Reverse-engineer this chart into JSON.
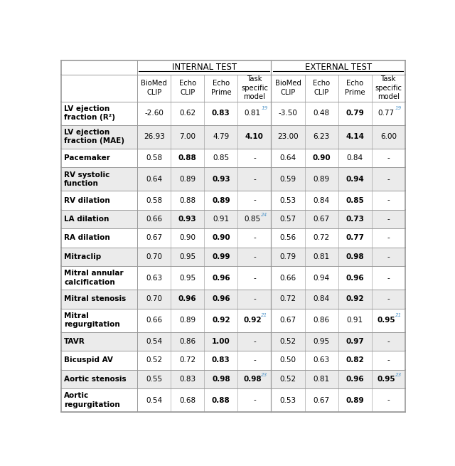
{
  "header1_left": "INTERNAL TEST",
  "header1_right": "EXTERNAL TEST",
  "col_headers": [
    "BioMed\nCLIP",
    "Echo\nCLIP",
    "Echo\nPrime",
    "Task\nspecific\nmodel",
    "BioMed\nCLIP",
    "Echo\nCLIP",
    "Echo\nPrime",
    "Task\nspecific\nmodel"
  ],
  "rows": [
    {
      "label": "LV ejection\nfraction (R²)",
      "values": [
        "-2.60",
        "0.62",
        "0.83",
        "0.81",
        "-3.50",
        "0.48",
        "0.79",
        "0.77"
      ],
      "bold": [
        false,
        false,
        true,
        false,
        false,
        false,
        true,
        false
      ],
      "sup": [
        "",
        "",
        "",
        "19",
        "",
        "",
        "",
        "19"
      ],
      "bg": "#ffffff"
    },
    {
      "label": "LV ejection\nfraction (MAE)",
      "values": [
        "26.93",
        "7.00",
        "4.79",
        "4.10",
        "23.00",
        "6.23",
        "4.14",
        "6.00"
      ],
      "bold": [
        false,
        false,
        false,
        true,
        false,
        false,
        true,
        false
      ],
      "sup": [
        "",
        "",
        "",
        "",
        "",
        "",
        "",
        ""
      ],
      "bg": "#ebebeb"
    },
    {
      "label": "Pacemaker",
      "values": [
        "0.58",
        "0.88",
        "0.85",
        "-",
        "0.64",
        "0.90",
        "0.84",
        "-"
      ],
      "bold": [
        false,
        true,
        false,
        false,
        false,
        true,
        false,
        false
      ],
      "sup": [
        "",
        "",
        "",
        "",
        "",
        "",
        "",
        ""
      ],
      "bg": "#ffffff"
    },
    {
      "label": "RV systolic\nfunction",
      "values": [
        "0.64",
        "0.89",
        "0.93",
        "-",
        "0.59",
        "0.89",
        "0.94",
        "-"
      ],
      "bold": [
        false,
        false,
        true,
        false,
        false,
        false,
        true,
        false
      ],
      "sup": [
        "",
        "",
        "",
        "",
        "",
        "",
        "",
        ""
      ],
      "bg": "#ebebeb"
    },
    {
      "label": "RV dilation",
      "values": [
        "0.58",
        "0.88",
        "0.89",
        "-",
        "0.53",
        "0.84",
        "0.85",
        "-"
      ],
      "bold": [
        false,
        false,
        true,
        false,
        false,
        false,
        true,
        false
      ],
      "sup": [
        "",
        "",
        "",
        "",
        "",
        "",
        "",
        ""
      ],
      "bg": "#ffffff"
    },
    {
      "label": "LA dilation",
      "values": [
        "0.66",
        "0.93",
        "0.91",
        "0.85",
        "0.57",
        "0.67",
        "0.73",
        "-"
      ],
      "bold": [
        false,
        true,
        false,
        false,
        false,
        false,
        true,
        false
      ],
      "sup": [
        "",
        "",
        "",
        "24",
        "",
        "",
        "",
        ""
      ],
      "bg": "#ebebeb"
    },
    {
      "label": "RA dilation",
      "values": [
        "0.67",
        "0.90",
        "0.90",
        "-",
        "0.56",
        "0.72",
        "0.77",
        "-"
      ],
      "bold": [
        false,
        false,
        true,
        false,
        false,
        false,
        true,
        false
      ],
      "sup": [
        "",
        "",
        "",
        "",
        "",
        "",
        "",
        ""
      ],
      "bg": "#ffffff"
    },
    {
      "label": "Mitraclip",
      "values": [
        "0.70",
        "0.95",
        "0.99",
        "-",
        "0.79",
        "0.81",
        "0.98",
        "-"
      ],
      "bold": [
        false,
        false,
        true,
        false,
        false,
        false,
        true,
        false
      ],
      "sup": [
        "",
        "",
        "",
        "",
        "",
        "",
        "",
        ""
      ],
      "bg": "#ebebeb"
    },
    {
      "label": "Mitral annular\ncalcification",
      "values": [
        "0.63",
        "0.95",
        "0.96",
        "-",
        "0.66",
        "0.94",
        "0.96",
        "-"
      ],
      "bold": [
        false,
        false,
        true,
        false,
        false,
        false,
        true,
        false
      ],
      "sup": [
        "",
        "",
        "",
        "",
        "",
        "",
        "",
        ""
      ],
      "bg": "#ffffff"
    },
    {
      "label": "Mitral stenosis",
      "values": [
        "0.70",
        "0.96",
        "0.96",
        "-",
        "0.72",
        "0.84",
        "0.92",
        "-"
      ],
      "bold": [
        false,
        true,
        true,
        false,
        false,
        false,
        true,
        false
      ],
      "sup": [
        "",
        "",
        "",
        "",
        "",
        "",
        "",
        ""
      ],
      "bg": "#ebebeb"
    },
    {
      "label": "Mitral\nregurgitation",
      "values": [
        "0.66",
        "0.89",
        "0.92",
        "0.92",
        "0.67",
        "0.86",
        "0.91",
        "0.95"
      ],
      "bold": [
        false,
        false,
        true,
        true,
        false,
        false,
        false,
        true
      ],
      "sup": [
        "",
        "",
        "",
        "21",
        "",
        "",
        "",
        "21"
      ],
      "bg": "#ffffff"
    },
    {
      "label": "TAVR",
      "values": [
        "0.54",
        "0.86",
        "1.00",
        "-",
        "0.52",
        "0.95",
        "0.97",
        "-"
      ],
      "bold": [
        false,
        false,
        true,
        false,
        false,
        false,
        true,
        false
      ],
      "sup": [
        "",
        "",
        "",
        "",
        "",
        "",
        "",
        ""
      ],
      "bg": "#ebebeb"
    },
    {
      "label": "Bicuspid AV",
      "values": [
        "0.52",
        "0.72",
        "0.83",
        "-",
        "0.50",
        "0.63",
        "0.82",
        "-"
      ],
      "bold": [
        false,
        false,
        true,
        false,
        false,
        false,
        true,
        false
      ],
      "sup": [
        "",
        "",
        "",
        "",
        "",
        "",
        "",
        ""
      ],
      "bg": "#ffffff"
    },
    {
      "label": "Aortic stenosis",
      "values": [
        "0.55",
        "0.83",
        "0.98",
        "0.98",
        "0.52",
        "0.81",
        "0.96",
        "0.95"
      ],
      "bold": [
        false,
        false,
        true,
        true,
        false,
        false,
        true,
        true
      ],
      "sup": [
        "",
        "",
        "",
        "23",
        "",
        "",
        "",
        "23"
      ],
      "bg": "#ebebeb"
    },
    {
      "label": "Aortic\nregurgitation",
      "values": [
        "0.54",
        "0.68",
        "0.88",
        "-",
        "0.53",
        "0.67",
        "0.89",
        "-"
      ],
      "bold": [
        false,
        false,
        true,
        false,
        false,
        false,
        true,
        false
      ],
      "sup": [
        "",
        "",
        "",
        "",
        "",
        "",
        "",
        ""
      ],
      "bg": "#ffffff"
    }
  ],
  "border_color": "#999999",
  "sup_color": "#5599cc",
  "header_bg": "#ffffff",
  "fig_width": 6.4,
  "fig_height": 6.55
}
